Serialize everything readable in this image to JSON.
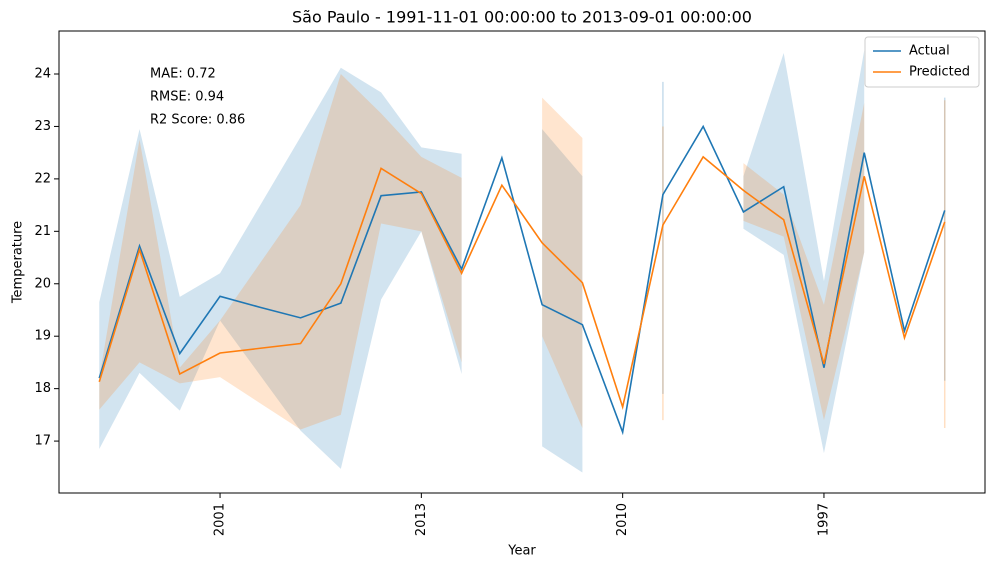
{
  "chart_data": {
    "type": "line",
    "title": "São Paulo - 1991-11-01 00:00:00 to 2013-09-01 00:00:00",
    "x_label": "Year",
    "y_label": "Temperature",
    "categories": [
      null,
      null,
      null,
      "2001",
      null,
      null,
      null,
      null,
      "2013",
      null,
      null,
      null,
      null,
      "2010",
      null,
      null,
      null,
      null,
      "1997",
      null,
      null,
      null
    ],
    "annotations": [
      "MAE: 0.72",
      "RMSE: 0.94",
      "R2 Score: 0.86"
    ],
    "ylim": [
      16.01,
      24.82
    ],
    "yticks": [
      17,
      18,
      19,
      20,
      21,
      22,
      23,
      24
    ],
    "legend": "upper right",
    "series": [
      {
        "name": "Actual",
        "color": "#1f77b4",
        "values": [
          18.2,
          20.72,
          18.67,
          19.76,
          19.55,
          19.35,
          19.63,
          21.68,
          21.75,
          20.28,
          22.4,
          19.6,
          19.22,
          17.17,
          21.7,
          23.0,
          21.37,
          21.85,
          18.4,
          22.5,
          19.1,
          21.4
        ],
        "lower": [
          16.85,
          18.3,
          17.58,
          19.3,
          18.25,
          17.2,
          16.47,
          19.7,
          21.0,
          18.28,
          null,
          16.9,
          16.4,
          null,
          17.9,
          null,
          21.05,
          20.55,
          16.77,
          20.6,
          null,
          18.15
        ],
        "upper": [
          19.65,
          22.95,
          19.75,
          20.2,
          21.5,
          22.8,
          24.12,
          23.65,
          22.6,
          22.48,
          null,
          22.95,
          22.05,
          null,
          23.85,
          null,
          22.05,
          24.4,
          20.05,
          24.45,
          null,
          23.55
        ]
      },
      {
        "name": "Predicted",
        "color": "#ff7f0e",
        "values": [
          18.13,
          20.65,
          18.28,
          18.68,
          18.77,
          18.86,
          20.0,
          22.2,
          21.72,
          20.2,
          21.88,
          20.78,
          20.02,
          17.65,
          21.12,
          22.42,
          21.78,
          21.22,
          18.47,
          22.05,
          18.97,
          21.18
        ],
        "lower": [
          17.6,
          18.5,
          18.1,
          18.22,
          17.72,
          17.22,
          17.5,
          21.15,
          21.0,
          18.5,
          null,
          19.0,
          17.25,
          null,
          17.4,
          null,
          21.2,
          20.9,
          17.4,
          20.6,
          null,
          17.25
        ],
        "upper": [
          18.2,
          22.75,
          18.4,
          19.3,
          20.4,
          21.5,
          24.0,
          23.25,
          22.42,
          22.02,
          null,
          23.55,
          22.78,
          null,
          23.0,
          null,
          22.3,
          21.7,
          19.6,
          23.45,
          null,
          23.5
        ]
      }
    ]
  }
}
